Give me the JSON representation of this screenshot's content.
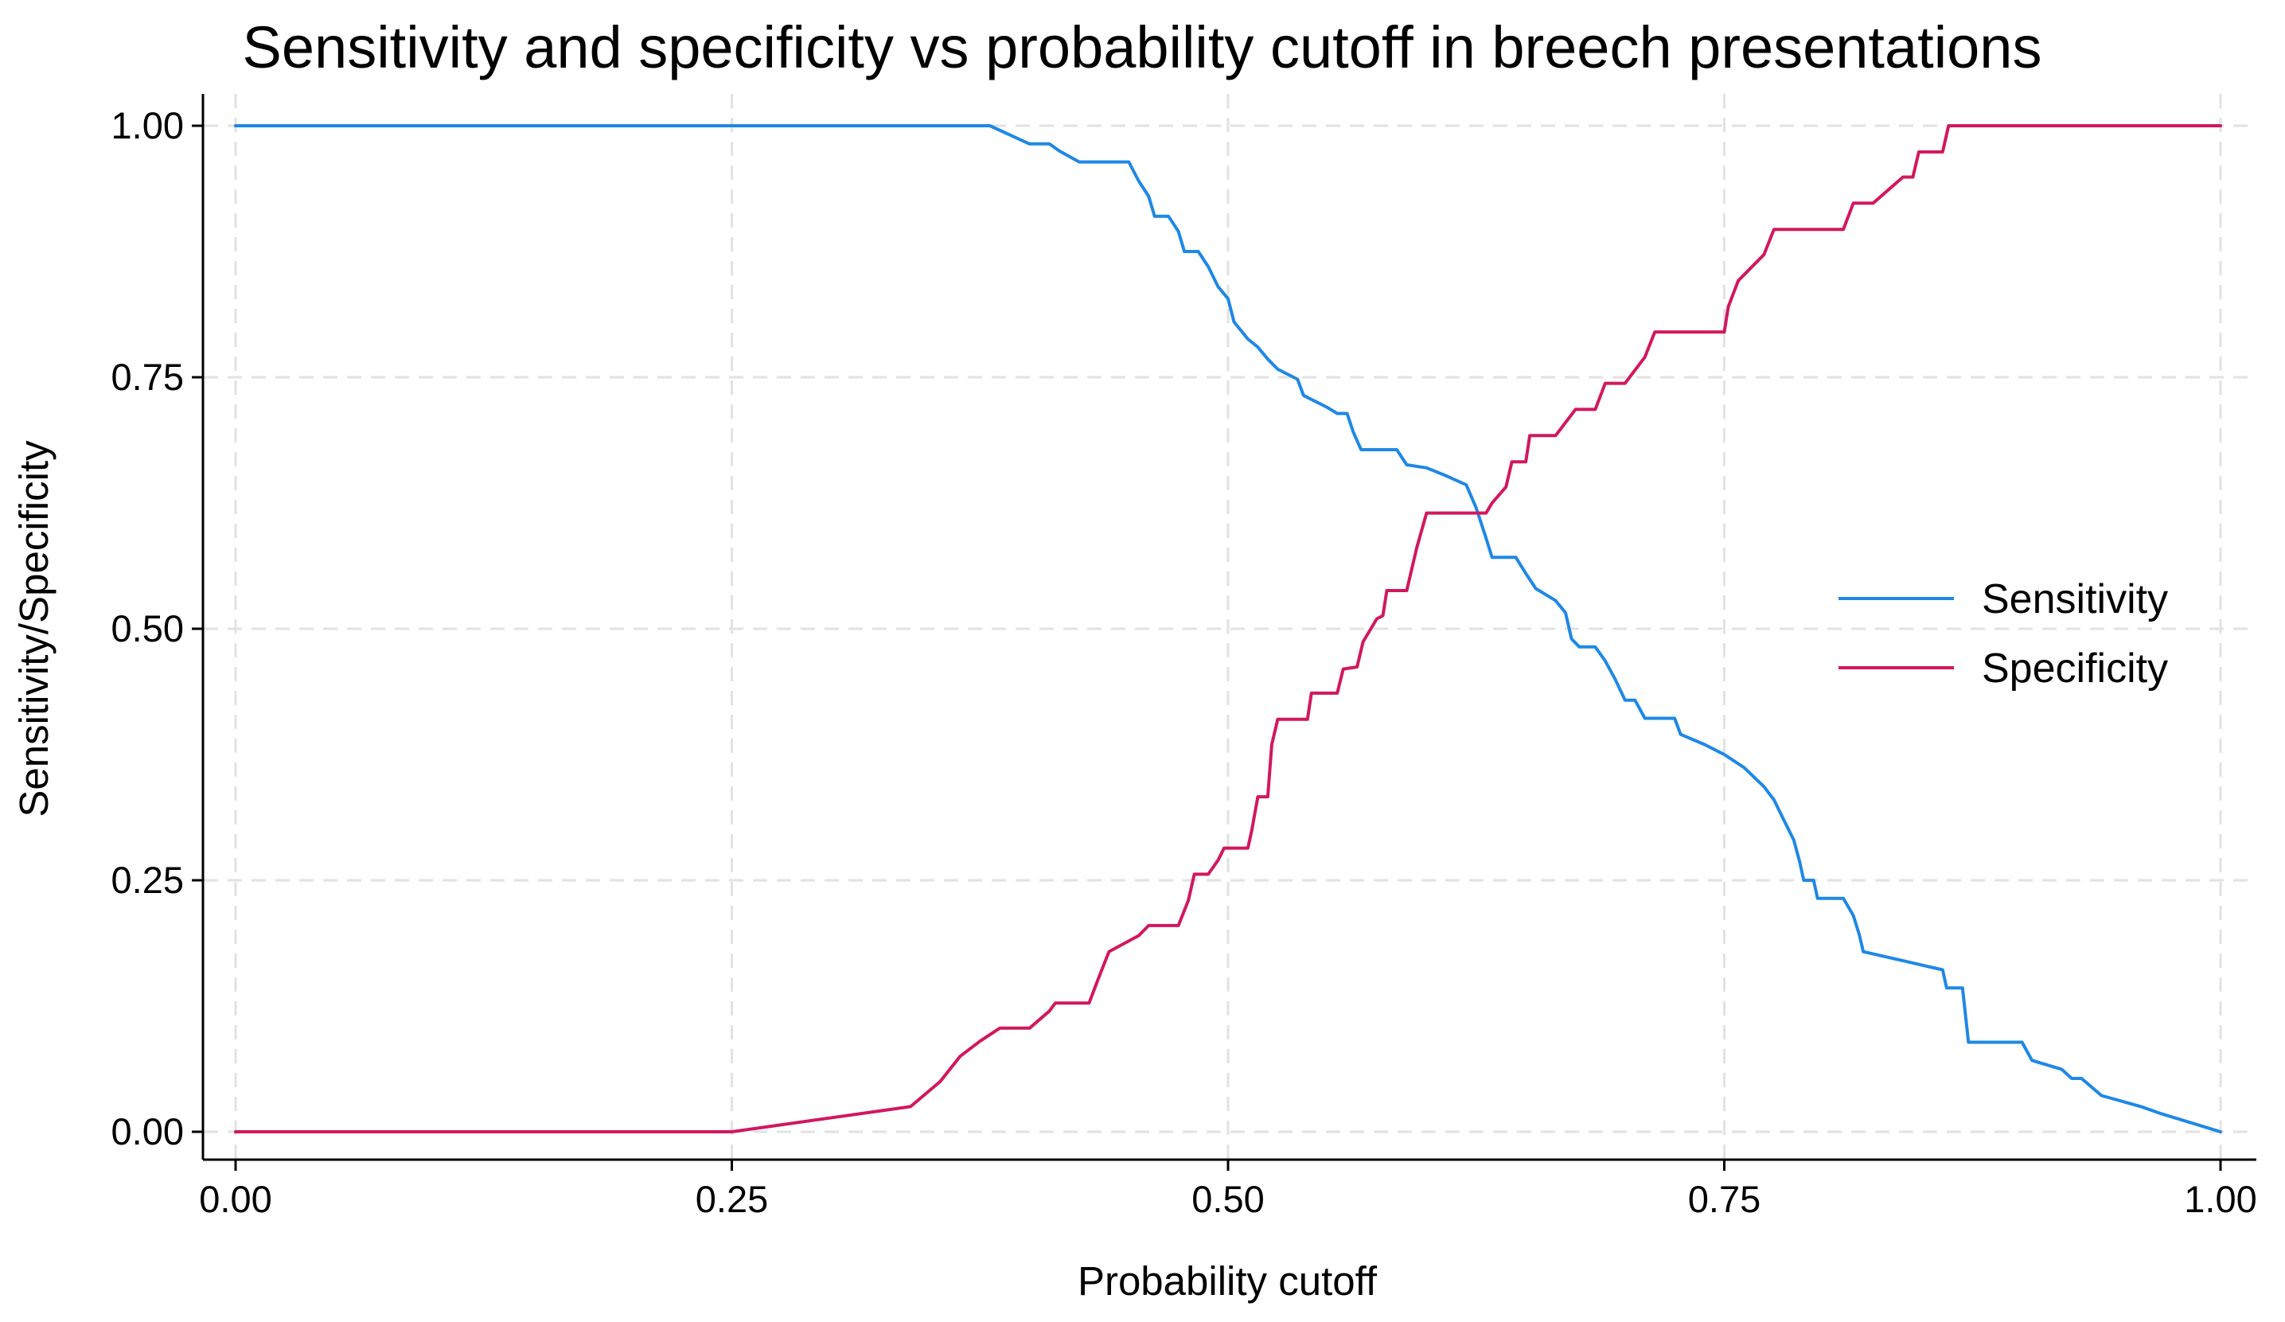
{
  "chart_data": {
    "type": "line",
    "title": "Sensitivity and specificity vs probability cutoff in breech presentations",
    "xlabel": "Probability cutoff",
    "ylabel": "Sensitivity/Specificity",
    "xlim": [
      0,
      1
    ],
    "ylim": [
      0,
      1
    ],
    "x_ticks": [
      "0.00",
      "0.25",
      "0.50",
      "0.75",
      "1.00"
    ],
    "y_ticks": [
      "0.00",
      "0.25",
      "0.50",
      "0.75",
      "1.00"
    ],
    "grid": true,
    "legend_position": "right",
    "series": [
      {
        "name": "Sensitivity",
        "color": "#1e88e5",
        "points": [
          [
            0.0,
            1.0
          ],
          [
            0.38,
            1.0
          ],
          [
            0.4,
            0.982
          ],
          [
            0.41,
            0.982
          ],
          [
            0.415,
            0.975
          ],
          [
            0.425,
            0.964
          ],
          [
            0.45,
            0.964
          ],
          [
            0.455,
            0.945
          ],
          [
            0.46,
            0.93
          ],
          [
            0.463,
            0.91
          ],
          [
            0.47,
            0.91
          ],
          [
            0.475,
            0.895
          ],
          [
            0.478,
            0.875
          ],
          [
            0.485,
            0.875
          ],
          [
            0.49,
            0.86
          ],
          [
            0.495,
            0.84
          ],
          [
            0.5,
            0.828
          ],
          [
            0.503,
            0.805
          ],
          [
            0.51,
            0.788
          ],
          [
            0.515,
            0.78
          ],
          [
            0.52,
            0.768
          ],
          [
            0.525,
            0.758
          ],
          [
            0.535,
            0.748
          ],
          [
            0.538,
            0.732
          ],
          [
            0.55,
            0.72
          ],
          [
            0.555,
            0.714
          ],
          [
            0.56,
            0.714
          ],
          [
            0.563,
            0.696
          ],
          [
            0.567,
            0.678
          ],
          [
            0.585,
            0.678
          ],
          [
            0.59,
            0.663
          ],
          [
            0.6,
            0.66
          ],
          [
            0.61,
            0.652
          ],
          [
            0.62,
            0.643
          ],
          [
            0.625,
            0.62
          ],
          [
            0.63,
            0.59
          ],
          [
            0.633,
            0.571
          ],
          [
            0.645,
            0.571
          ],
          [
            0.65,
            0.555
          ],
          [
            0.655,
            0.54
          ],
          [
            0.665,
            0.528
          ],
          [
            0.67,
            0.516
          ],
          [
            0.673,
            0.49
          ],
          [
            0.677,
            0.482
          ],
          [
            0.685,
            0.482
          ],
          [
            0.69,
            0.468
          ],
          [
            0.695,
            0.45
          ],
          [
            0.7,
            0.429
          ],
          [
            0.705,
            0.429
          ],
          [
            0.71,
            0.411
          ],
          [
            0.725,
            0.411
          ],
          [
            0.728,
            0.395
          ],
          [
            0.74,
            0.385
          ],
          [
            0.75,
            0.375
          ],
          [
            0.76,
            0.362
          ],
          [
            0.77,
            0.343
          ],
          [
            0.775,
            0.33
          ],
          [
            0.78,
            0.31
          ],
          [
            0.785,
            0.29
          ],
          [
            0.788,
            0.268
          ],
          [
            0.79,
            0.25
          ],
          [
            0.795,
            0.25
          ],
          [
            0.797,
            0.232
          ],
          [
            0.81,
            0.232
          ],
          [
            0.815,
            0.215
          ],
          [
            0.818,
            0.196
          ],
          [
            0.82,
            0.179
          ],
          [
            0.84,
            0.17
          ],
          [
            0.86,
            0.161
          ],
          [
            0.862,
            0.143
          ],
          [
            0.87,
            0.143
          ],
          [
            0.873,
            0.089
          ],
          [
            0.9,
            0.089
          ],
          [
            0.905,
            0.071
          ],
          [
            0.92,
            0.062
          ],
          [
            0.925,
            0.053
          ],
          [
            0.93,
            0.053
          ],
          [
            0.94,
            0.036
          ],
          [
            0.96,
            0.025
          ],
          [
            0.97,
            0.018
          ],
          [
            1.0,
            0.0
          ]
        ]
      },
      {
        "name": "Specificity",
        "color": "#d1185f",
        "points": [
          [
            0.0,
            0.0
          ],
          [
            0.25,
            0.0
          ],
          [
            0.34,
            0.025
          ],
          [
            0.355,
            0.05
          ],
          [
            0.365,
            0.075
          ],
          [
            0.375,
            0.09
          ],
          [
            0.385,
            0.103
          ],
          [
            0.4,
            0.103
          ],
          [
            0.41,
            0.12
          ],
          [
            0.413,
            0.128
          ],
          [
            0.425,
            0.128
          ],
          [
            0.43,
            0.128
          ],
          [
            0.435,
            0.154
          ],
          [
            0.44,
            0.179
          ],
          [
            0.455,
            0.195
          ],
          [
            0.46,
            0.205
          ],
          [
            0.47,
            0.205
          ],
          [
            0.475,
            0.205
          ],
          [
            0.48,
            0.23
          ],
          [
            0.483,
            0.256
          ],
          [
            0.49,
            0.256
          ],
          [
            0.495,
            0.27
          ],
          [
            0.498,
            0.282
          ],
          [
            0.51,
            0.282
          ],
          [
            0.512,
            0.3
          ],
          [
            0.515,
            0.333
          ],
          [
            0.52,
            0.333
          ],
          [
            0.522,
            0.385
          ],
          [
            0.525,
            0.41
          ],
          [
            0.54,
            0.41
          ],
          [
            0.542,
            0.436
          ],
          [
            0.555,
            0.436
          ],
          [
            0.558,
            0.46
          ],
          [
            0.565,
            0.462
          ],
          [
            0.568,
            0.487
          ],
          [
            0.575,
            0.51
          ],
          [
            0.578,
            0.513
          ],
          [
            0.58,
            0.538
          ],
          [
            0.59,
            0.538
          ],
          [
            0.595,
            0.58
          ],
          [
            0.6,
            0.615
          ],
          [
            0.63,
            0.615
          ],
          [
            0.633,
            0.625
          ],
          [
            0.64,
            0.641
          ],
          [
            0.643,
            0.666
          ],
          [
            0.65,
            0.666
          ],
          [
            0.652,
            0.692
          ],
          [
            0.665,
            0.692
          ],
          [
            0.675,
            0.718
          ],
          [
            0.685,
            0.718
          ],
          [
            0.69,
            0.744
          ],
          [
            0.7,
            0.744
          ],
          [
            0.71,
            0.77
          ],
          [
            0.715,
            0.795
          ],
          [
            0.74,
            0.795
          ],
          [
            0.75,
            0.795
          ],
          [
            0.752,
            0.82
          ],
          [
            0.757,
            0.846
          ],
          [
            0.77,
            0.872
          ],
          [
            0.775,
            0.897
          ],
          [
            0.8,
            0.897
          ],
          [
            0.81,
            0.897
          ],
          [
            0.815,
            0.923
          ],
          [
            0.825,
            0.923
          ],
          [
            0.84,
            0.949
          ],
          [
            0.845,
            0.949
          ],
          [
            0.848,
            0.974
          ],
          [
            0.86,
            0.974
          ],
          [
            0.863,
            1.0
          ],
          [
            1.0,
            1.0
          ]
        ]
      }
    ]
  }
}
